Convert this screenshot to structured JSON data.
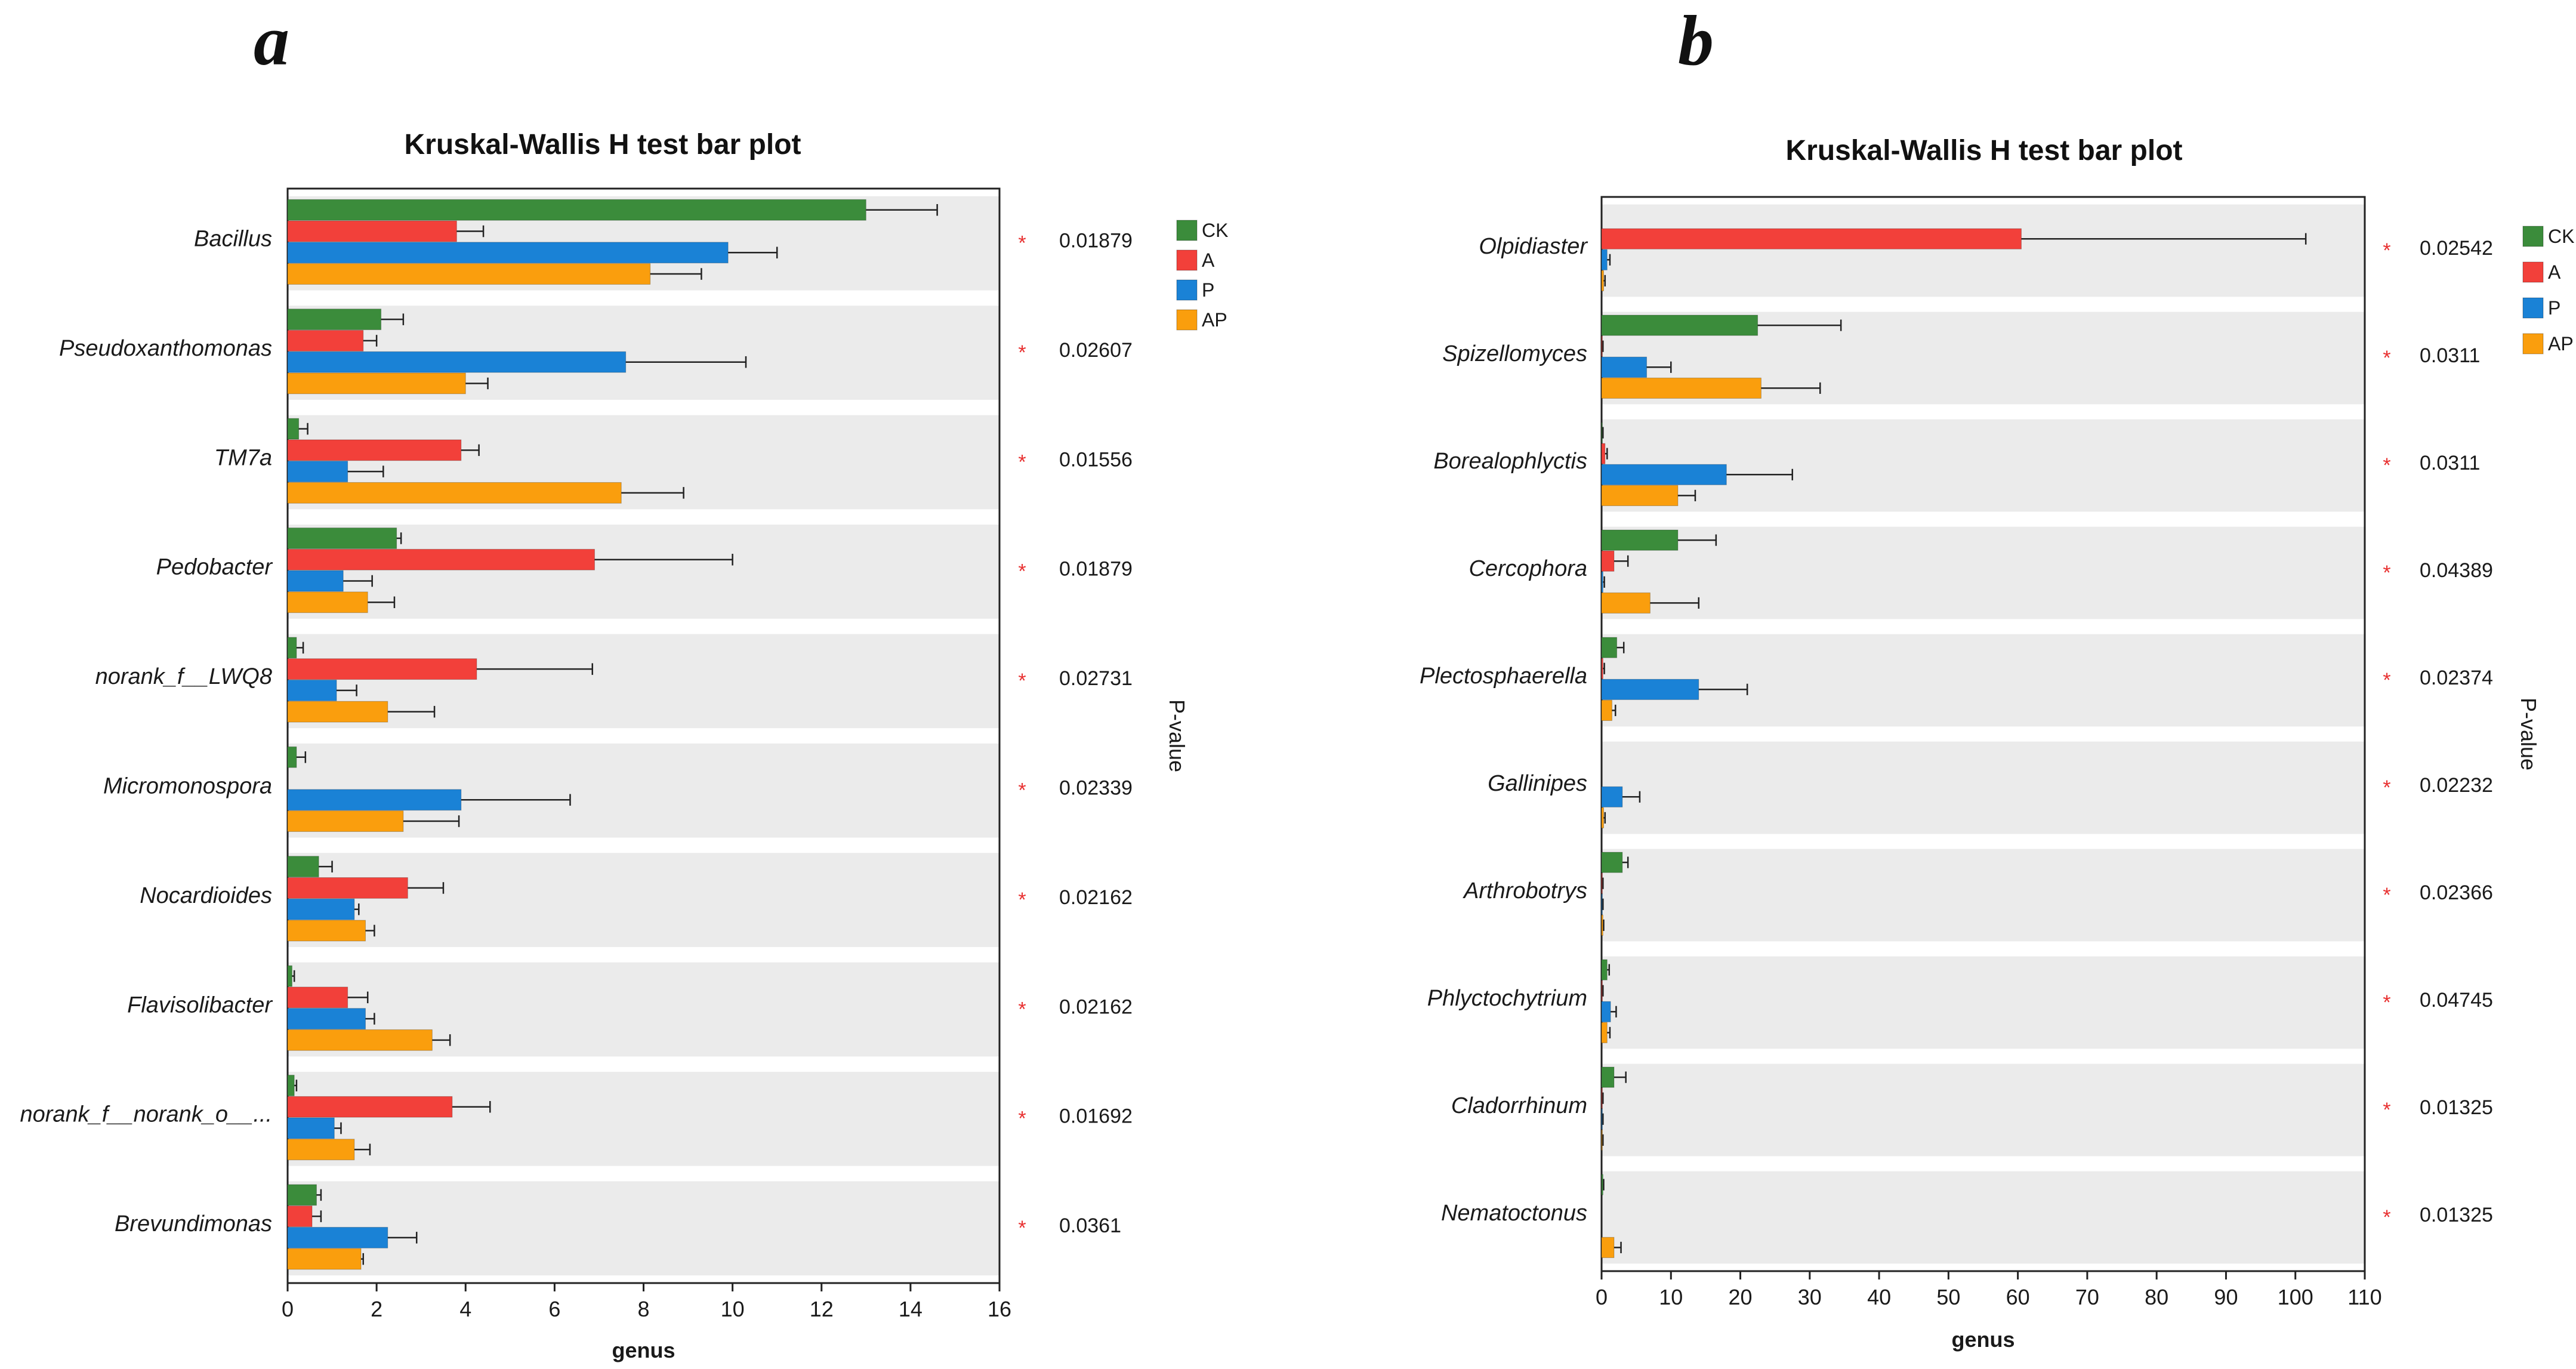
{
  "figure": {
    "panel_labels": [
      "a",
      "b"
    ]
  },
  "legend_labels": [
    "CK",
    "A",
    "P",
    "AP"
  ],
  "colors": {
    "CK": "#3b8c3b",
    "A": "#f2403a",
    "P": "#1a82d6",
    "AP": "#fa9e0d",
    "band": "#ebebeb",
    "asterisk": "#e83030",
    "text": "#1a1a1a"
  },
  "chart_data": [
    {
      "type": "bar",
      "orientation": "horizontal",
      "title": "Kruskal-Wallis H test bar plot",
      "xlabel": "genus",
      "pvalue_label": "P-value",
      "xlim": [
        0,
        16
      ],
      "xticks": [
        0,
        2,
        4,
        6,
        8,
        10,
        12,
        14,
        16
      ],
      "categories": [
        "Bacillus",
        "Pseudoxanthomonas",
        "TM7a",
        "Pedobacter",
        "norank_f__LWQ8",
        "Micromonospora",
        "Nocardioides",
        "Flavisolibacter",
        "norank_f__norank_o__...",
        "Brevundimonas"
      ],
      "series": [
        {
          "name": "CK",
          "values": [
            13.0,
            2.1,
            0.25,
            2.45,
            0.2,
            0.2,
            0.7,
            0.1,
            0.15,
            0.65
          ],
          "errors": [
            1.6,
            0.5,
            0.2,
            0.1,
            0.15,
            0.2,
            0.3,
            0.05,
            0.05,
            0.1
          ]
        },
        {
          "name": "A",
          "values": [
            3.8,
            1.7,
            3.9,
            6.9,
            4.25,
            0.0,
            2.7,
            1.35,
            3.7,
            0.55
          ],
          "errors": [
            0.6,
            0.3,
            0.4,
            3.1,
            2.6,
            0.0,
            0.8,
            0.45,
            0.85,
            0.2
          ]
        },
        {
          "name": "P",
          "values": [
            9.9,
            7.6,
            1.35,
            1.25,
            1.1,
            3.9,
            1.5,
            1.75,
            1.05,
            2.25
          ],
          "errors": [
            1.1,
            2.7,
            0.8,
            0.65,
            0.45,
            2.45,
            0.1,
            0.2,
            0.15,
            0.65
          ]
        },
        {
          "name": "AP",
          "values": [
            8.15,
            4.0,
            7.5,
            1.8,
            2.25,
            2.6,
            1.75,
            3.25,
            1.5,
            1.65
          ],
          "errors": [
            1.15,
            0.5,
            1.4,
            0.6,
            1.05,
            1.25,
            0.2,
            0.4,
            0.35,
            0.05
          ]
        }
      ],
      "pvalues": [
        "0.01879",
        "0.02607",
        "0.01556",
        "0.01879",
        "0.02731",
        "0.02339",
        "0.02162",
        "0.02162",
        "0.01692",
        "0.0361"
      ],
      "pvalue_marker": "*"
    },
    {
      "type": "bar",
      "orientation": "horizontal",
      "title": "Kruskal-Wallis H test bar plot",
      "xlabel": "genus",
      "pvalue_label": "P-value",
      "xlim": [
        0,
        110
      ],
      "xticks": [
        0,
        10,
        20,
        30,
        40,
        50,
        60,
        70,
        80,
        90,
        100,
        110
      ],
      "categories": [
        "Olpidiaster",
        "Spizellomyces",
        "Borealophlyctis",
        "Cercophora",
        "Plectosphaerella",
        "Gallinipes",
        "Arthrobotrys",
        "Phlyctochytrium",
        "Cladorrhinum",
        "Nematoctonus"
      ],
      "series": [
        {
          "name": "CK",
          "values": [
            0.0,
            22.5,
            0.1,
            11.0,
            2.2,
            0.0,
            3.0,
            0.8,
            1.8,
            0.2
          ],
          "errors": [
            0.0,
            12.0,
            0.1,
            5.5,
            1.0,
            0.0,
            0.8,
            0.3,
            1.7,
            0.1
          ]
        },
        {
          "name": "A",
          "values": [
            60.5,
            0.1,
            0.5,
            1.8,
            0.2,
            0.0,
            0.1,
            0.1,
            0.1,
            0.0
          ],
          "errors": [
            41.0,
            0.1,
            0.3,
            2.0,
            0.2,
            0.0,
            0.1,
            0.1,
            0.1,
            0.0
          ]
        },
        {
          "name": "P",
          "values": [
            0.8,
            6.5,
            18.0,
            0.2,
            14.0,
            3.0,
            0.1,
            1.3,
            0.1,
            0.0
          ],
          "errors": [
            0.4,
            3.5,
            9.5,
            0.2,
            7.0,
            2.5,
            0.1,
            0.8,
            0.1,
            0.0
          ]
        },
        {
          "name": "AP",
          "values": [
            0.3,
            23.0,
            11.0,
            7.0,
            1.5,
            0.3,
            0.2,
            0.8,
            0.1,
            1.8
          ],
          "errors": [
            0.2,
            8.5,
            2.5,
            7.0,
            0.5,
            0.2,
            0.1,
            0.4,
            0.1,
            1.0
          ]
        }
      ],
      "pvalues": [
        "0.02542",
        "0.0311",
        "0.0311",
        "0.04389",
        "0.02374",
        "0.02232",
        "0.02366",
        "0.04745",
        "0.01325",
        "0.01325"
      ],
      "pvalue_marker": "*"
    }
  ]
}
